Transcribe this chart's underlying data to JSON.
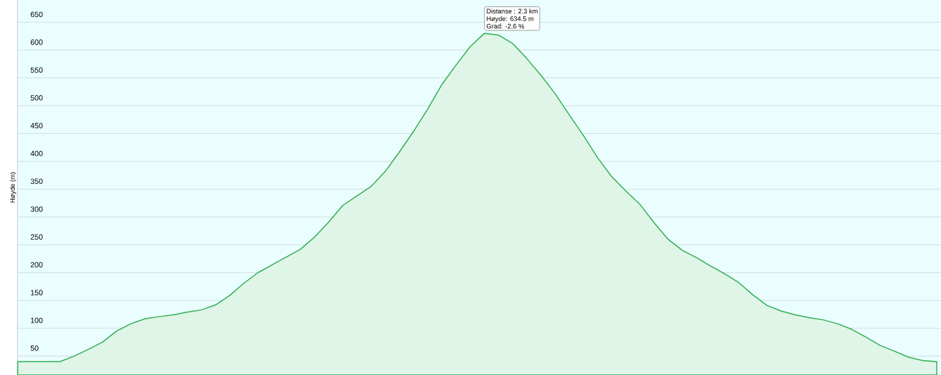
{
  "chart_data": {
    "type": "area",
    "ylabel": "Høyde (m)",
    "categories": [
      null,
      null,
      null,
      null,
      null,
      null,
      null,
      null,
      null,
      null,
      null,
      null,
      null,
      null,
      null,
      null,
      null,
      null,
      null,
      null,
      null,
      null,
      null,
      null,
      null,
      null,
      null,
      null,
      null,
      null,
      null,
      null,
      null,
      null,
      null,
      null,
      null,
      null,
      null,
      null,
      null,
      null,
      null,
      null,
      null,
      null,
      null,
      null,
      null,
      null,
      null,
      null,
      null,
      null,
      null,
      null,
      null,
      null,
      null,
      null,
      null,
      null,
      null,
      null,
      null,
      null
    ],
    "series": [
      {
        "color": "#dff5e8",
        "values": [
          40,
          40,
          40,
          40,
          50,
          62,
          75,
          95,
          108,
          117,
          121,
          124,
          129,
          133,
          142,
          159,
          181,
          200,
          214,
          228,
          242,
          264,
          291,
          321,
          338,
          355,
          382,
          417,
          454,
          494,
          538,
          573,
          606,
          630,
          627,
          612,
          585,
          555,
          522,
          484,
          447,
          407,
          373,
          347,
          323,
          290,
          260,
          240,
          227,
          212,
          198,
          182,
          160,
          141,
          131,
          124,
          119,
          115,
          108,
          98,
          84,
          69,
          59,
          48,
          42,
          40
        ]
      }
    ],
    "ylim": [
      16,
      690
    ],
    "yticks": [
      50,
      100,
      150,
      200,
      250,
      300,
      350,
      400,
      450,
      500,
      550,
      600,
      650
    ],
    "grid": "y",
    "tick_labels": "y",
    "annotations": [
      "Distanse : 2.3 km",
      "Høyde: 634.5 m",
      "Grad: -2.6 %"
    ]
  }
}
